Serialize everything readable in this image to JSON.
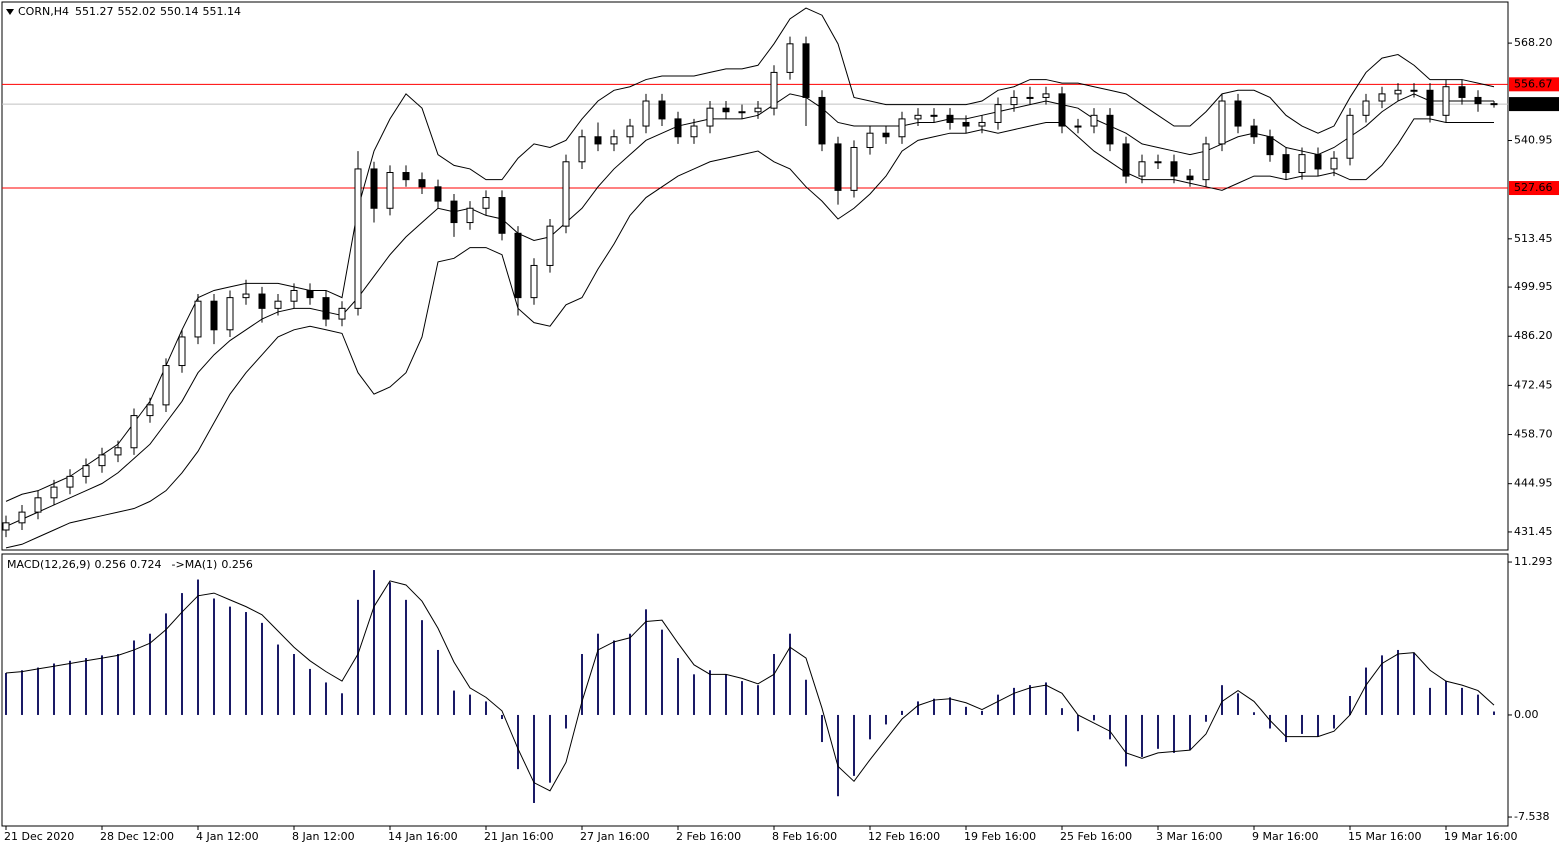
{
  "chart_data": {
    "type": "candlestick",
    "symbol": "CORN,H4",
    "color": "#000000",
    "open": [
      432,
      434,
      437,
      441,
      444,
      447,
      450,
      453,
      455,
      464,
      467,
      478,
      486,
      496,
      488,
      497,
      498,
      494,
      496,
      499,
      497,
      491,
      494,
      533,
      522,
      532,
      530,
      528,
      524,
      518,
      522,
      525,
      515,
      497,
      506,
      517,
      535,
      542,
      540,
      542,
      545,
      552,
      547,
      542,
      545,
      550,
      549,
      549,
      550,
      560,
      568,
      553,
      540,
      527,
      539,
      543,
      542,
      547,
      548,
      548,
      546,
      545,
      546,
      551,
      553,
      553,
      554,
      545,
      545,
      548,
      540,
      531,
      535,
      535,
      531,
      530,
      540,
      552,
      545,
      542,
      537,
      532,
      537,
      533,
      536,
      548,
      552,
      554,
      555,
      555,
      548,
      556,
      553,
      551.27
    ],
    "high": [
      436,
      439,
      443,
      446,
      449,
      452,
      455,
      457,
      466,
      469,
      480,
      488,
      498,
      498,
      499,
      502,
      500,
      498,
      501,
      501,
      499,
      496,
      538,
      535,
      534,
      534,
      532,
      530,
      526,
      524,
      527,
      527,
      517,
      508,
      519,
      537,
      544,
      546,
      544,
      547,
      554,
      554,
      549,
      547,
      552,
      552,
      551,
      552,
      562,
      570,
      570,
      555,
      542,
      541,
      545,
      545,
      549,
      550,
      550,
      550,
      548,
      548,
      553,
      555,
      556,
      556,
      556,
      547,
      550,
      550,
      542,
      537,
      537,
      537,
      533,
      542,
      554,
      554,
      547,
      544,
      539,
      539,
      539,
      538,
      550,
      554,
      556,
      557,
      557,
      557,
      558,
      558,
      555,
      552.02
    ],
    "low": [
      430,
      432,
      435,
      439,
      442,
      445,
      448,
      451,
      453,
      462,
      465,
      476,
      484,
      484,
      486,
      495,
      490,
      492,
      494,
      495,
      489,
      489,
      492,
      518,
      520,
      528,
      526,
      522,
      514,
      516,
      520,
      513,
      492,
      495,
      504,
      515,
      533,
      538,
      538,
      540,
      543,
      545,
      540,
      540,
      543,
      547,
      547,
      547,
      548,
      558,
      545,
      538,
      523,
      525,
      537,
      540,
      540,
      545,
      546,
      544,
      543,
      543,
      544,
      549,
      551,
      551,
      543,
      543,
      543,
      538,
      529,
      529,
      533,
      529,
      528,
      528,
      538,
      543,
      540,
      535,
      530,
      530,
      531,
      531,
      534,
      546,
      550,
      552,
      553,
      546,
      546,
      551,
      549,
      550.14
    ],
    "close": [
      434,
      437,
      441,
      444,
      447,
      450,
      453,
      455,
      464,
      467,
      478,
      486,
      496,
      488,
      497,
      498,
      494,
      496,
      499,
      497,
      491,
      494,
      533,
      522,
      532,
      530,
      528,
      524,
      518,
      522,
      525,
      515,
      497,
      506,
      517,
      535,
      542,
      540,
      542,
      545,
      552,
      547,
      542,
      545,
      550,
      549,
      549,
      550,
      560,
      568,
      553,
      540,
      527,
      539,
      543,
      542,
      547,
      548,
      548,
      546,
      545,
      546,
      551,
      553,
      553,
      554,
      545,
      545,
      548,
      540,
      531,
      535,
      535,
      531,
      530,
      540,
      552,
      545,
      542,
      537,
      532,
      537,
      533,
      536,
      548,
      552,
      554,
      555,
      555,
      548,
      556,
      553,
      551.27,
      551.14
    ],
    "bands": {
      "color": "#000000",
      "upper": [
        440,
        442,
        443,
        445,
        447,
        450,
        453,
        456,
        462,
        468,
        478,
        488,
        497,
        499,
        500,
        501,
        501,
        501,
        500,
        499,
        499,
        497,
        522,
        538,
        547,
        554,
        550,
        537,
        534,
        533,
        530,
        530,
        536,
        540,
        539,
        541,
        547,
        552,
        555,
        556,
        558,
        559,
        559,
        559,
        560,
        561,
        561,
        562,
        568,
        575,
        578,
        576,
        568,
        553,
        552,
        551,
        551,
        551,
        551,
        551,
        551,
        552,
        555,
        556,
        558,
        558,
        557,
        557,
        556,
        555,
        554,
        551,
        548,
        545,
        545,
        549,
        554,
        555,
        555,
        553,
        548,
        545,
        543,
        545,
        553,
        560,
        564,
        565,
        562,
        558,
        558,
        558,
        557,
        556
      ],
      "middle": [
        433,
        435,
        437,
        439,
        441,
        443,
        445,
        448,
        452,
        456,
        462,
        468,
        476,
        481,
        485,
        488,
        491,
        493,
        494,
        494,
        493,
        492,
        497,
        503,
        509,
        514,
        518,
        522,
        521,
        522,
        520,
        519,
        515,
        513,
        514,
        518,
        522,
        528,
        533,
        537,
        541,
        543,
        545,
        546,
        547,
        547,
        547,
        548,
        551,
        554,
        553,
        550,
        546,
        545,
        545,
        545,
        545,
        546,
        546,
        547,
        547,
        548,
        549,
        550,
        551,
        552,
        551,
        550,
        547,
        545,
        543,
        540,
        539,
        538,
        537,
        538,
        540,
        542,
        543,
        542,
        539,
        538,
        537,
        539,
        542,
        545,
        549,
        552,
        554,
        552,
        552,
        552,
        552,
        552
      ],
      "lower": [
        427,
        428,
        430,
        432,
        434,
        435,
        436,
        437,
        438,
        440,
        443,
        448,
        454,
        462,
        470,
        476,
        481,
        486,
        488,
        489,
        488,
        487,
        476,
        470,
        472,
        476,
        486,
        507,
        508,
        511,
        511,
        509,
        494,
        490,
        489,
        495,
        497,
        505,
        512,
        520,
        525,
        528,
        531,
        533,
        535,
        536,
        537,
        538,
        535,
        533,
        528,
        524,
        519,
        522,
        526,
        531,
        538,
        541,
        542,
        543,
        543,
        544,
        543,
        544,
        545,
        546,
        546,
        542,
        538,
        535,
        532,
        530,
        530,
        530,
        529,
        528,
        527,
        529,
        531,
        531,
        530,
        531,
        531,
        532,
        530,
        530,
        534,
        540,
        547,
        547,
        546,
        546,
        546,
        546
      ]
    },
    "ylim": [
      426.4,
      579.7
    ],
    "yticks": [
      {
        "value": 568.2,
        "label": "568.20"
      },
      540.95,
      513.45,
      499.95,
      {
        "value": 486.2,
        "label": "486.20"
      },
      472.45,
      {
        "value": 458.7,
        "label": "458.70"
      },
      444.95,
      431.45
    ],
    "levels": [
      {
        "value": 556.67,
        "color": "#ff0000"
      },
      {
        "value": 527.66,
        "color": "#ff0000"
      }
    ],
    "price_line_color": "#c0c0c0",
    "xticks": [
      {
        "value": 0,
        "label": "21 Dec 2020"
      },
      {
        "value": 6,
        "label": "28 Dec 12:00"
      },
      {
        "value": 12,
        "label": "4 Jan 12:00"
      },
      {
        "value": 18,
        "label": "8 Jan 12:00"
      },
      {
        "value": 24,
        "label": "14 Jan 16:00"
      },
      {
        "value": 30,
        "label": "21 Jan 16:00"
      },
      {
        "value": 36,
        "label": "27 Jan 16:00"
      },
      {
        "value": 42,
        "label": "2 Feb 16:00"
      },
      {
        "value": 48,
        "label": "8 Feb 16:00"
      },
      {
        "value": 54,
        "label": "12 Feb 16:00"
      },
      {
        "value": 60,
        "label": "19 Feb 16:00"
      },
      {
        "value": 66,
        "label": "25 Feb 16:00"
      },
      {
        "value": 72,
        "label": "3 Mar 16:00"
      },
      {
        "value": 78,
        "label": "9 Mar 16:00"
      },
      {
        "value": 84,
        "label": "15 Mar 16:00"
      },
      {
        "value": 90,
        "label": "19 Mar 16:00"
      }
    ],
    "macd": {
      "title": "MACD(12,26,9)",
      "ma_label": "->MA(1)",
      "color": "#1a1a66",
      "signal_color": "#000000",
      "histogram": [
        3.1,
        3.3,
        3.5,
        3.8,
        4.0,
        4.2,
        4.4,
        4.5,
        5.5,
        6.0,
        7.5,
        9.0,
        10.0,
        8.6,
        8.0,
        7.6,
        6.8,
        5.2,
        4.5,
        3.4,
        2.4,
        1.6,
        8.5,
        10.7,
        9.8,
        8.5,
        7.0,
        4.8,
        1.8,
        1.5,
        1.0,
        -0.3,
        -4.0,
        -6.5,
        -5.0,
        -1.0,
        4.5,
        6.0,
        5.5,
        6.0,
        7.8,
        6.3,
        4.2,
        3.0,
        3.3,
        3.0,
        2.5,
        2.2,
        4.5,
        6.0,
        2.6,
        -2.0,
        -6.0,
        -4.5,
        -1.8,
        -0.7,
        0.3,
        1.0,
        1.2,
        1.3,
        0.6,
        0.3,
        1.5,
        2.0,
        2.2,
        2.4,
        0.5,
        -1.2,
        -0.4,
        -1.8,
        -3.8,
        -3.1,
        -2.5,
        -2.8,
        -2.6,
        -0.5,
        2.2,
        1.6,
        0.2,
        -1.0,
        -2.0,
        -1.4,
        -1.6,
        -1.0,
        1.4,
        3.5,
        4.4,
        4.8,
        4.6,
        2.0,
        2.5,
        2.0,
        1.5,
        0.256
      ],
      "signal": [
        3.1,
        3.2,
        3.4,
        3.6,
        3.8,
        4.0,
        4.2,
        4.4,
        4.8,
        5.3,
        6.3,
        7.6,
        8.8,
        9.0,
        8.5,
        8.0,
        7.4,
        6.2,
        5.0,
        4.0,
        3.2,
        2.5,
        4.5,
        8.0,
        9.9,
        9.6,
        8.4,
        6.4,
        3.9,
        2.0,
        1.3,
        0.3,
        -2.5,
        -5.0,
        -5.6,
        -3.5,
        1.0,
        4.8,
        5.4,
        5.7,
        6.9,
        7.0,
        5.3,
        3.7,
        3.0,
        3.0,
        2.7,
        2.3,
        3.0,
        5.0,
        4.2,
        0.5,
        -3.8,
        -4.9,
        -3.3,
        -1.8,
        -0.3,
        0.7,
        1.1,
        1.2,
        0.9,
        0.4,
        1.0,
        1.6,
        2.0,
        2.2,
        1.6,
        0.0,
        -0.6,
        -1.2,
        -2.8,
        -3.2,
        -2.8,
        -2.7,
        -2.6,
        -1.4,
        1.0,
        1.8,
        1.0,
        -0.4,
        -1.6,
        -1.6,
        -1.6,
        -1.2,
        0.0,
        2.2,
        3.8,
        4.5,
        4.6,
        3.3,
        2.5,
        2.2,
        1.8,
        0.724
      ],
      "ylim": [
        -8.2,
        11.886
      ],
      "yticks": [
        11.293,
        {
          "value": 0,
          "label": "0.00"
        },
        -7.538
      ]
    }
  }
}
